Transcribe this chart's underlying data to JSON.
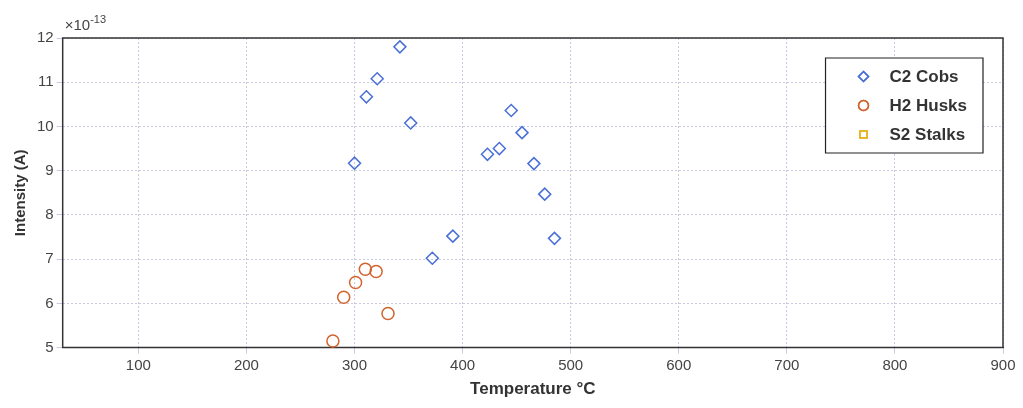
{
  "chart_data": {
    "type": "scatter",
    "xlabel": "Temperature °C",
    "ylabel": "Intensity (A)",
    "annotations": [
      "×10$^{-13}$"
    ],
    "xlim": [
      30,
      900
    ],
    "xticks": [
      100,
      200,
      300,
      400,
      500,
      600,
      700,
      800,
      900
    ],
    "ylim": [
      5,
      12
    ],
    "yticks": [
      5,
      6,
      7,
      8,
      9,
      10,
      11,
      12
    ],
    "grid": true,
    "legend": "top right",
    "series": [
      {
        "name": "C2 Cobs",
        "color": "#4a6fd6",
        "marker": "diamond",
        "x": [
          300,
          311,
          321,
          342,
          352,
          372,
          391,
          423,
          434,
          445,
          455,
          466,
          476,
          485
        ],
        "values": [
          9.17,
          10.67,
          11.08,
          11.8,
          10.08,
          7.02,
          7.52,
          9.37,
          9.5,
          10.36,
          9.86,
          9.16,
          8.47,
          7.47
        ]
      },
      {
        "name": "H2 Husks",
        "color": "#d2642e",
        "marker": "circle",
        "x": [
          280,
          290,
          301,
          310,
          320,
          331
        ],
        "values": [
          5.15,
          6.14,
          6.47,
          6.77,
          6.72,
          5.77
        ]
      },
      {
        "name": "S2 Stalks",
        "color": "#e8b21e",
        "marker": "square"
      }
    ]
  }
}
